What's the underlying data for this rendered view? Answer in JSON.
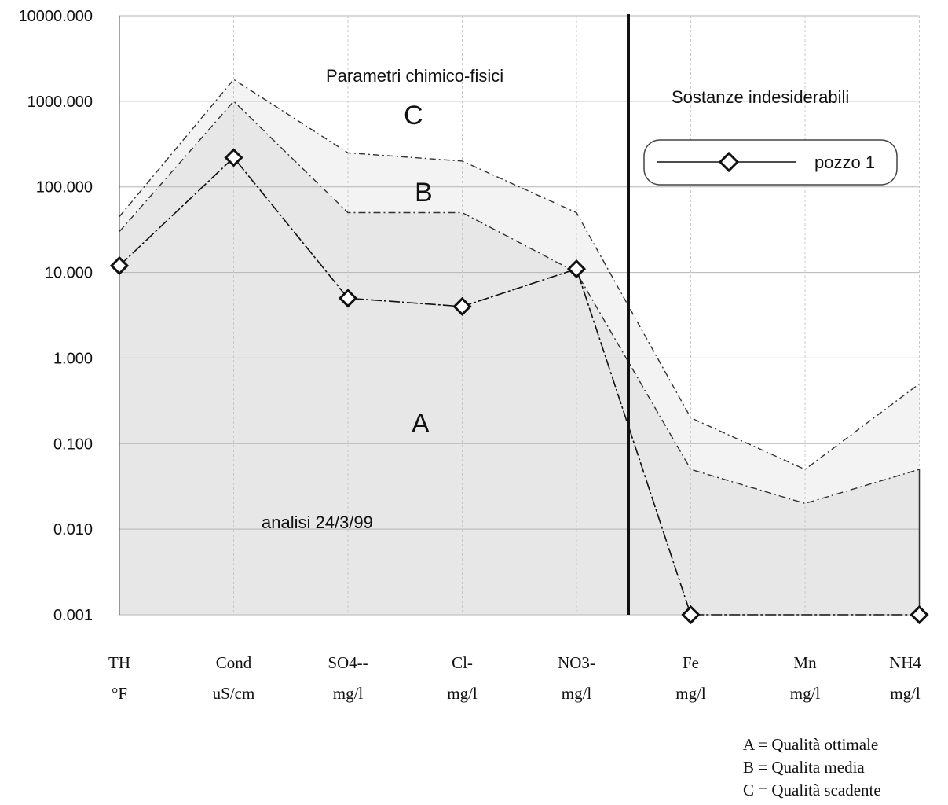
{
  "chart_data": {
    "type": "line",
    "y_scale": "log",
    "ylim": [
      0.001,
      10000
    ],
    "y_ticks": [
      "10000.000",
      "1000.000",
      "100.000",
      "10.000",
      "1.000",
      "0.100",
      "0.010",
      "0.001"
    ],
    "categories": [
      {
        "name": "TH",
        "unit": "°F"
      },
      {
        "name": "Cond",
        "unit": "uS/cm"
      },
      {
        "name": "SO4--",
        "unit": "mg/l"
      },
      {
        "name": "Cl-",
        "unit": "mg/l"
      },
      {
        "name": "NO3-",
        "unit": "mg/l"
      },
      {
        "name": "Fe",
        "unit": "mg/l"
      },
      {
        "name": "Mn",
        "unit": "mg/l"
      },
      {
        "name": "NH4",
        "unit": "mg/l"
      }
    ],
    "series": [
      {
        "name": "pozzo 1",
        "values": [
          12,
          220,
          5,
          4,
          11,
          0.001,
          0.001,
          0.001
        ],
        "skip_indices": [
          6
        ]
      }
    ],
    "quality_bounds": [
      {
        "zone": "A",
        "values": [
          30,
          1000,
          50,
          50,
          10,
          0.05,
          0.02,
          0.05
        ]
      },
      {
        "zone": "B",
        "values": [
          45,
          1800,
          250,
          200,
          50,
          0.2,
          0.05,
          0.5
        ]
      }
    ],
    "zone_labels": [
      "A",
      "B",
      "C"
    ],
    "section_titles": [
      "Parametri chimico-fisici",
      "Sostanze indesiderabili"
    ],
    "annotation": "analisi 24/3/99",
    "legend": {
      "entries": [
        "pozzo 1"
      ],
      "placement": "top-right"
    },
    "grid": true,
    "quality_legend": [
      "A = Qualità ottimale",
      "B = Qualita media",
      "C = Qualità scadente"
    ],
    "colors": {
      "zone_a": "#e7e7e7",
      "zone_b": "#f3f3f3",
      "series": "#111111",
      "bound": "#333333"
    }
  }
}
